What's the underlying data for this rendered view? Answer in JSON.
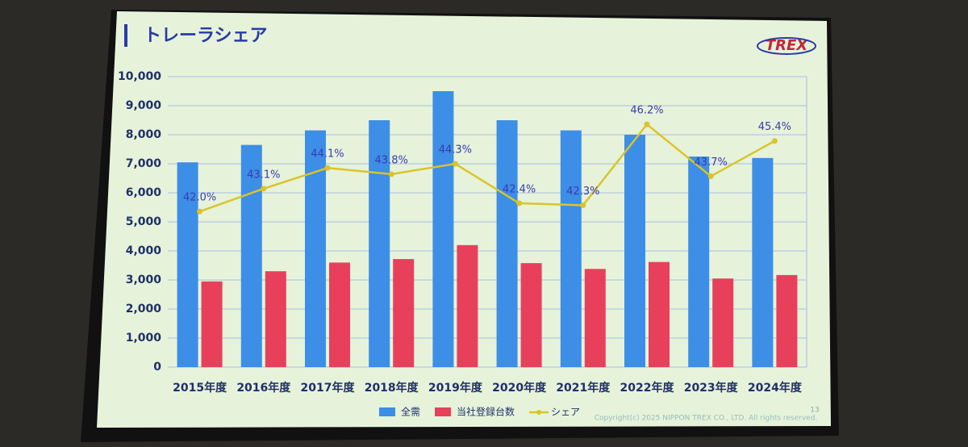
{
  "chart_data": {
    "type": "bar-line",
    "title": "トレーラシェア",
    "categories": [
      "2015年度",
      "2016年度",
      "2017年度",
      "2018年度",
      "2019年度",
      "2020年度",
      "2021年度",
      "2022年度",
      "2023年度",
      "2024年度"
    ],
    "series": [
      {
        "name": "全需",
        "color": "#3d8ee6",
        "type": "bar",
        "values": [
          7050,
          7650,
          8150,
          8500,
          9500,
          8500,
          8150,
          8000,
          7250,
          7200
        ]
      },
      {
        "name": "当社登録台数",
        "color": "#e8405a",
        "type": "bar",
        "values": [
          2950,
          3300,
          3600,
          3720,
          4200,
          3580,
          3380,
          3620,
          3050,
          3170
        ]
      },
      {
        "name": "シェア",
        "color": "#d9c42a",
        "type": "line",
        "axis": "y2",
        "values": [
          42.0,
          43.1,
          44.1,
          43.8,
          44.3,
          42.4,
          42.3,
          46.2,
          43.7,
          45.4
        ],
        "value_labels": [
          "42.0%",
          "43.1%",
          "44.1%",
          "43.8%",
          "44.3%",
          "42.4%",
          "42.3%",
          "46.2%",
          "43.7%",
          "45.4%"
        ]
      }
    ],
    "ylim": [
      0,
      10000
    ],
    "yticks": [
      0,
      {
        "value": 1000,
        "label": "1,000"
      },
      {
        "value": 2000,
        "label": "2,000"
      },
      {
        "value": 3000,
        "label": "3,000"
      },
      {
        "value": 4000,
        "label": "4,000"
      },
      {
        "value": 5000,
        "label": "5,000"
      },
      {
        "value": 6000,
        "label": "6,000"
      },
      {
        "value": 7000,
        "label": "7,000"
      },
      {
        "value": 8000,
        "label": "8,000"
      },
      {
        "value": 9000,
        "label": "9,000"
      },
      {
        "value": 10000,
        "label": "10,000"
      }
    ],
    "y2lim": [
      34.5,
      48.5
    ],
    "grid": true,
    "legend": "bottom"
  },
  "logo": "TREX",
  "page_number": "13",
  "copyright": "Copyright(c) 2025 NIPPON TREX CO., LTD. All rights reserved."
}
